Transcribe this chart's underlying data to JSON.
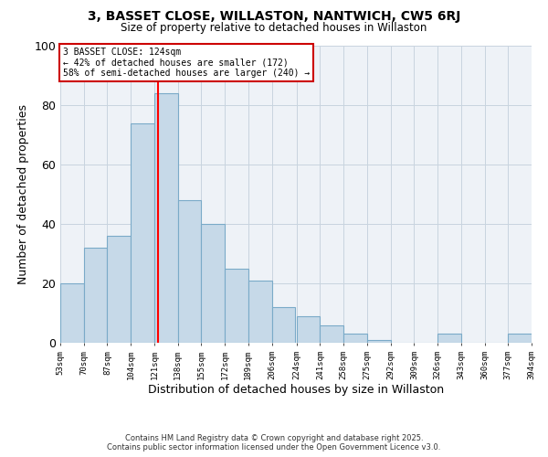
{
  "title": "3, BASSET CLOSE, WILLASTON, NANTWICH, CW5 6RJ",
  "subtitle": "Size of property relative to detached houses in Willaston",
  "xlabel": "Distribution of detached houses by size in Willaston",
  "ylabel": "Number of detached properties",
  "bar_left_edges": [
    53,
    70,
    87,
    104,
    121,
    138,
    155,
    172,
    189,
    206,
    224,
    241,
    258,
    275,
    292,
    309,
    326,
    343,
    360,
    377
  ],
  "bar_heights": [
    20,
    32,
    36,
    74,
    84,
    48,
    40,
    25,
    21,
    12,
    9,
    6,
    3,
    1,
    0,
    0,
    3,
    0,
    0,
    3
  ],
  "bin_width": 17,
  "xtick_labels": [
    "53sqm",
    "70sqm",
    "87sqm",
    "104sqm",
    "121sqm",
    "138sqm",
    "155sqm",
    "172sqm",
    "189sqm",
    "206sqm",
    "224sqm",
    "241sqm",
    "258sqm",
    "275sqm",
    "292sqm",
    "309sqm",
    "326sqm",
    "343sqm",
    "360sqm",
    "377sqm",
    "394sqm"
  ],
  "ylim": [
    0,
    100
  ],
  "yticks": [
    0,
    20,
    40,
    60,
    80,
    100
  ],
  "bar_color": "#c6d9e8",
  "bar_edge_color": "#7aaac8",
  "property_line_x": 124,
  "property_line_color": "red",
  "annotation_line1": "3 BASSET CLOSE: 124sqm",
  "annotation_line2": "← 42% of detached houses are smaller (172)",
  "annotation_line3": "58% of semi-detached houses are larger (240) →",
  "grid_color": "#c8d4df",
  "footer_line1": "Contains HM Land Registry data © Crown copyright and database right 2025.",
  "footer_line2": "Contains public sector information licensed under the Open Government Licence v3.0."
}
